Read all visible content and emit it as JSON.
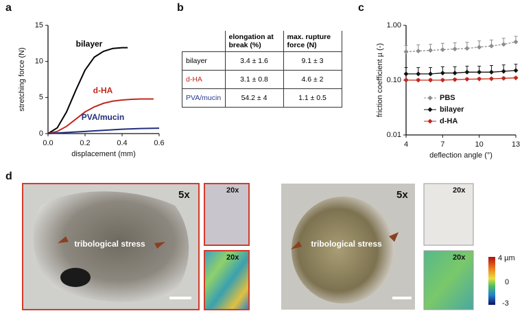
{
  "chart_data": [
    {
      "type": "line",
      "panel_label": "a",
      "xlabel": "displacement (mm)",
      "ylabel": "stretching force (N)",
      "xlim": [
        0,
        0.6
      ],
      "xticks": [
        {
          "value": 0,
          "label": "0.0"
        },
        0.2,
        0.4,
        0.6
      ],
      "ylim": [
        0,
        15
      ],
      "yticks": [
        0,
        5,
        10,
        15
      ],
      "log_y": false,
      "series": [
        {
          "name": "bilayer",
          "color": "#000000",
          "x": [
            0,
            0.05,
            0.1,
            0.15,
            0.2,
            0.25,
            0.3,
            0.35,
            0.4,
            0.43
          ],
          "values": [
            0,
            0.8,
            3,
            6,
            8.8,
            10.6,
            11.4,
            11.8,
            11.9,
            11.9
          ]
        },
        {
          "name": "d-HA",
          "color": "#c0281e",
          "x": [
            0,
            0.05,
            0.1,
            0.15,
            0.2,
            0.25,
            0.3,
            0.35,
            0.4,
            0.45,
            0.5,
            0.57
          ],
          "values": [
            0,
            0.3,
            1,
            2,
            3,
            3.7,
            4.2,
            4.5,
            4.65,
            4.75,
            4.8,
            4.8
          ]
        },
        {
          "name": "PVA/mucin",
          "color": "#1f2f7a",
          "x": [
            0,
            0.1,
            0.2,
            0.3,
            0.4,
            0.5,
            0.6
          ],
          "values": [
            0,
            0.15,
            0.3,
            0.45,
            0.6,
            0.7,
            0.75
          ]
        }
      ]
    },
    {
      "type": "line",
      "panel_label": "c",
      "xlabel": "deflection angle (°)",
      "ylabel": "friction coefficient µ (-)",
      "xlim": [
        4,
        13
      ],
      "xticks": [
        4,
        7,
        10,
        13
      ],
      "ylim": [
        0.01,
        1
      ],
      "yticks": [
        0.01,
        {
          "value": 0.1,
          "label": "0.10"
        },
        {
          "value": 1,
          "label": "1.00"
        }
      ],
      "log_y": true,
      "legend": "lower center",
      "series": [
        {
          "name": "PBS",
          "color": "#8c8c8c",
          "line_style": "dashed",
          "x": [
            4,
            5,
            6,
            7,
            8,
            9,
            10,
            11,
            12,
            13
          ],
          "values": [
            0.33,
            0.34,
            0.35,
            0.36,
            0.37,
            0.38,
            0.4,
            0.42,
            0.45,
            0.5
          ],
          "errors": [
            0.1,
            0.1,
            0.1,
            0.11,
            0.11,
            0.11,
            0.12,
            0.12,
            0.13,
            0.13
          ]
        },
        {
          "name": "bilayer",
          "color": "#111111",
          "line_style": "solid",
          "x": [
            4,
            5,
            6,
            7,
            8,
            9,
            10,
            11,
            12,
            13
          ],
          "values": [
            0.13,
            0.13,
            0.13,
            0.135,
            0.135,
            0.14,
            0.14,
            0.14,
            0.145,
            0.15
          ],
          "errors": [
            0.04,
            0.04,
            0.04,
            0.04,
            0.04,
            0.04,
            0.04,
            0.045,
            0.045,
            0.045
          ]
        },
        {
          "name": "d-HA",
          "color": "#c0281e",
          "line_style": "solid",
          "x": [
            4,
            5,
            6,
            7,
            8,
            9,
            10,
            11,
            12,
            13
          ],
          "values": [
            0.1,
            0.1,
            0.1,
            0.1,
            0.102,
            0.104,
            0.105,
            0.106,
            0.108,
            0.11
          ],
          "errors": [
            0.005,
            0.005,
            0.005,
            0.005,
            0.005,
            0.005,
            0.005,
            0.005,
            0.005,
            0.005
          ]
        }
      ]
    }
  ],
  "table": {
    "panel_label": "b",
    "columns": [
      "elongation at break (%)",
      "max. rupture force (N)"
    ],
    "rows": [
      {
        "label": "bilayer",
        "color": "#000000",
        "cells": [
          "3.4 ± 1.6",
          "9.1 ± 3"
        ]
      },
      {
        "label": "d-HA",
        "color": "#c0281e",
        "cells": [
          "3.1 ± 0.8",
          "4.6 ± 2"
        ]
      },
      {
        "label": "PVA/mucin",
        "color": "#2a3a8c",
        "cells": [
          "54.2 ± 4",
          "1.1 ± 0.5"
        ]
      }
    ]
  },
  "images": {
    "panel_label": "d",
    "left": {
      "overview": "5x",
      "detail_top": "20x",
      "detail_bottom": "20x",
      "annotation": "tribological stress"
    },
    "right": {
      "overview": "5x",
      "detail_top": "20x",
      "detail_bottom": "20x",
      "annotation": "tribological stress"
    },
    "colorbar": {
      "top": "4 µm",
      "middle": "0",
      "bottom": "-3"
    }
  }
}
